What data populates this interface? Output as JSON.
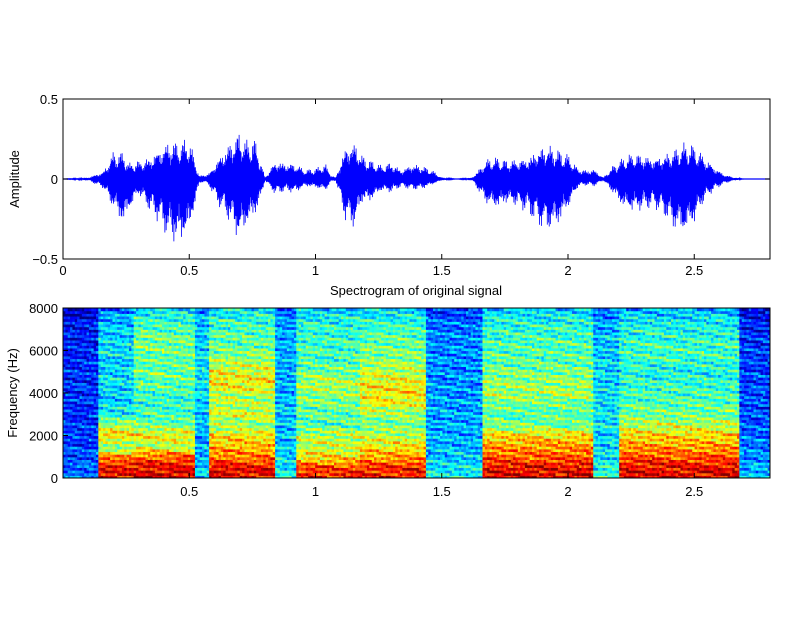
{
  "chart_data": [
    {
      "type": "line",
      "title": "",
      "xlabel": "",
      "ylabel": "Amplitude",
      "xlim": [
        0,
        2.8
      ],
      "ylim": [
        -0.5,
        0.5
      ],
      "x_ticks": [
        0,
        0.5,
        1,
        1.5,
        2,
        2.5
      ],
      "x_tick_labels": [
        "0",
        "0.5",
        "1",
        "1.5",
        "2",
        "2.5"
      ],
      "y_ticks": [
        -0.5,
        0,
        0.5
      ],
      "y_tick_labels": [
        "−0.5",
        "0",
        "0.5"
      ],
      "grid": false,
      "line_color": "#0000ff",
      "series": [
        {
          "name": "",
          "envelope_x": [
            0.0,
            0.1,
            0.16,
            0.2,
            0.24,
            0.26,
            0.3,
            0.34,
            0.38,
            0.42,
            0.46,
            0.5,
            0.54,
            0.56,
            0.58,
            0.62,
            0.66,
            0.7,
            0.72,
            0.76,
            0.78,
            0.8,
            0.84,
            0.88,
            0.92,
            0.96,
            1.0,
            1.04,
            1.06,
            1.08,
            1.12,
            1.16,
            1.18,
            1.22,
            1.26,
            1.3,
            1.34,
            1.38,
            1.42,
            1.46,
            1.5,
            1.56,
            1.62,
            1.68,
            1.72,
            1.76,
            1.8,
            1.84,
            1.88,
            1.92,
            1.96,
            2.0,
            2.04,
            2.08,
            2.1,
            2.14,
            2.18,
            2.22,
            2.26,
            2.3,
            2.34,
            2.38,
            2.42,
            2.46,
            2.5,
            2.54,
            2.58,
            2.62,
            2.66,
            2.7,
            2.8
          ],
          "envelope_upper": [
            0.0,
            0.01,
            0.05,
            0.18,
            0.17,
            0.1,
            0.12,
            0.14,
            0.2,
            0.25,
            0.24,
            0.26,
            0.02,
            0.03,
            0.04,
            0.15,
            0.24,
            0.31,
            0.25,
            0.26,
            0.14,
            0.01,
            0.12,
            0.11,
            0.1,
            0.06,
            0.07,
            0.1,
            0.03,
            0.01,
            0.22,
            0.24,
            0.16,
            0.12,
            0.09,
            0.11,
            0.06,
            0.1,
            0.09,
            0.06,
            0.01,
            0.0,
            0.01,
            0.13,
            0.14,
            0.12,
            0.13,
            0.14,
            0.2,
            0.22,
            0.19,
            0.16,
            0.07,
            0.06,
            0.07,
            0.01,
            0.09,
            0.14,
            0.17,
            0.16,
            0.14,
            0.16,
            0.19,
            0.23,
            0.22,
            0.15,
            0.08,
            0.03,
            0.01,
            0.0,
            0.0
          ],
          "envelope_lower": [
            0.0,
            -0.01,
            -0.06,
            -0.2,
            -0.32,
            -0.22,
            -0.1,
            -0.2,
            -0.28,
            -0.4,
            -0.44,
            -0.36,
            -0.03,
            -0.02,
            -0.05,
            -0.18,
            -0.28,
            -0.42,
            -0.34,
            -0.25,
            -0.16,
            -0.01,
            -0.1,
            -0.08,
            -0.09,
            -0.05,
            -0.06,
            -0.08,
            -0.02,
            -0.01,
            -0.28,
            -0.32,
            -0.16,
            -0.15,
            -0.08,
            -0.09,
            -0.05,
            -0.07,
            -0.07,
            -0.04,
            -0.01,
            -0.0,
            -0.01,
            -0.17,
            -0.2,
            -0.16,
            -0.18,
            -0.22,
            -0.3,
            -0.35,
            -0.32,
            -0.2,
            -0.05,
            -0.04,
            -0.05,
            -0.01,
            -0.1,
            -0.2,
            -0.22,
            -0.2,
            -0.18,
            -0.24,
            -0.34,
            -0.38,
            -0.3,
            -0.14,
            -0.07,
            -0.03,
            -0.01,
            -0.0,
            -0.0
          ]
        }
      ]
    },
    {
      "type": "heatmap",
      "title": "Spectrogram of original signal",
      "xlabel": "",
      "ylabel": "Frequency (Hz)",
      "xlim": [
        0,
        2.8
      ],
      "ylim": [
        0,
        8000
      ],
      "x_ticks": [
        0.5,
        1,
        1.5,
        2,
        2.5
      ],
      "x_tick_labels": [
        "0.5",
        "1",
        "1.5",
        "2",
        "2.5"
      ],
      "y_ticks": [
        0,
        2000,
        4000,
        6000,
        8000
      ],
      "y_tick_labels": [
        "0",
        "2000",
        "4000",
        "6000",
        "8000"
      ],
      "colormap": "jet",
      "frequency_bins_hz": [
        0,
        500,
        1000,
        1500,
        2000,
        2500,
        3000,
        3500,
        4000,
        4500,
        5000,
        5500,
        6000,
        6500,
        7000,
        7500,
        8000
      ],
      "time_segments": [
        {
          "t_start": 0.0,
          "t_end": 0.14,
          "energy": [
            0.3,
            0.28,
            0.26,
            0.25,
            0.24,
            0.24,
            0.23,
            0.23,
            0.22,
            0.22,
            0.22,
            0.21,
            0.21,
            0.21,
            0.2,
            0.18,
            0.1
          ]
        },
        {
          "t_start": 0.14,
          "t_end": 0.28,
          "energy": [
            0.95,
            0.93,
            0.8,
            0.55,
            0.72,
            0.6,
            0.45,
            0.4,
            0.38,
            0.42,
            0.4,
            0.38,
            0.42,
            0.4,
            0.38,
            0.36,
            0.3
          ]
        },
        {
          "t_start": 0.28,
          "t_end": 0.52,
          "energy": [
            0.97,
            0.95,
            0.85,
            0.6,
            0.7,
            0.55,
            0.5,
            0.48,
            0.5,
            0.52,
            0.55,
            0.52,
            0.55,
            0.55,
            0.52,
            0.48,
            0.4
          ]
        },
        {
          "t_start": 0.52,
          "t_end": 0.58,
          "energy": [
            0.4,
            0.38,
            0.36,
            0.35,
            0.35,
            0.38,
            0.38,
            0.4,
            0.42,
            0.42,
            0.42,
            0.4,
            0.4,
            0.38,
            0.38,
            0.36,
            0.3
          ]
        },
        {
          "t_start": 0.58,
          "t_end": 0.84,
          "energy": [
            0.96,
            0.94,
            0.82,
            0.75,
            0.7,
            0.58,
            0.65,
            0.6,
            0.62,
            0.7,
            0.66,
            0.6,
            0.55,
            0.52,
            0.5,
            0.48,
            0.4
          ]
        },
        {
          "t_start": 0.84,
          "t_end": 0.92,
          "energy": [
            0.45,
            0.42,
            0.4,
            0.38,
            0.38,
            0.38,
            0.38,
            0.38,
            0.36,
            0.36,
            0.36,
            0.36,
            0.36,
            0.35,
            0.35,
            0.33,
            0.28
          ]
        },
        {
          "t_start": 0.92,
          "t_end": 1.18,
          "energy": [
            0.92,
            0.88,
            0.7,
            0.62,
            0.62,
            0.52,
            0.52,
            0.55,
            0.58,
            0.6,
            0.55,
            0.5,
            0.5,
            0.48,
            0.48,
            0.45,
            0.38
          ]
        },
        {
          "t_start": 1.18,
          "t_end": 1.44,
          "energy": [
            0.93,
            0.9,
            0.78,
            0.7,
            0.62,
            0.55,
            0.58,
            0.66,
            0.7,
            0.68,
            0.62,
            0.58,
            0.55,
            0.52,
            0.5,
            0.45,
            0.38
          ]
        },
        {
          "t_start": 1.44,
          "t_end": 1.66,
          "energy": [
            0.45,
            0.42,
            0.38,
            0.36,
            0.35,
            0.35,
            0.34,
            0.34,
            0.33,
            0.33,
            0.33,
            0.32,
            0.32,
            0.32,
            0.3,
            0.28,
            0.22
          ]
        },
        {
          "t_start": 1.66,
          "t_end": 2.1,
          "energy": [
            0.96,
            0.95,
            0.85,
            0.78,
            0.72,
            0.55,
            0.52,
            0.55,
            0.6,
            0.58,
            0.55,
            0.52,
            0.52,
            0.5,
            0.48,
            0.45,
            0.38
          ]
        },
        {
          "t_start": 2.1,
          "t_end": 2.2,
          "energy": [
            0.5,
            0.45,
            0.42,
            0.4,
            0.4,
            0.42,
            0.42,
            0.42,
            0.42,
            0.4,
            0.4,
            0.4,
            0.38,
            0.38,
            0.36,
            0.34,
            0.28
          ]
        },
        {
          "t_start": 2.2,
          "t_end": 2.68,
          "energy": [
            0.97,
            0.95,
            0.85,
            0.78,
            0.72,
            0.62,
            0.55,
            0.52,
            0.5,
            0.48,
            0.45,
            0.48,
            0.5,
            0.48,
            0.45,
            0.42,
            0.35
          ]
        },
        {
          "t_start": 2.68,
          "t_end": 2.8,
          "energy": [
            0.4,
            0.35,
            0.32,
            0.3,
            0.28,
            0.27,
            0.26,
            0.26,
            0.25,
            0.25,
            0.25,
            0.24,
            0.24,
            0.23,
            0.22,
            0.2,
            0.12
          ]
        }
      ]
    }
  ]
}
